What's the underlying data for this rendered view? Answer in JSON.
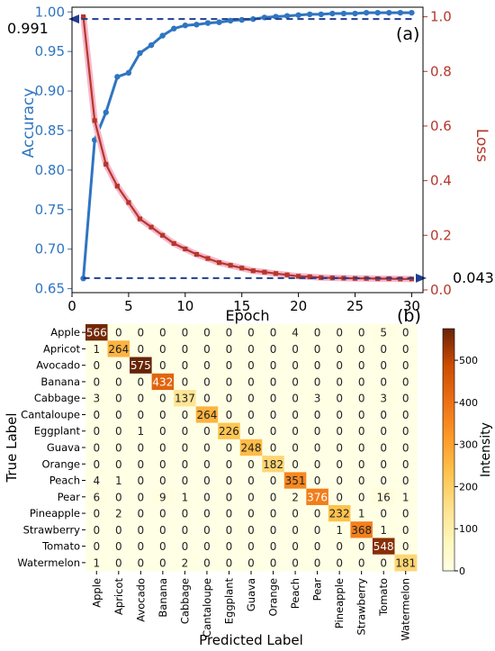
{
  "chart_data": [
    {
      "type": "line",
      "panel_label": "(a)",
      "xlabel": "Epoch",
      "ylabel_left": "Accuracy",
      "ylabel_right": "Loss",
      "xlim": [
        0,
        31
      ],
      "ylim_left": [
        0.645,
        1.006
      ],
      "ylim_right": [
        -0.01,
        1.035
      ],
      "xticks": [
        0,
        5,
        10,
        15,
        20,
        25,
        30
      ],
      "yticks_left": [
        0.65,
        0.7,
        0.75,
        0.8,
        0.85,
        0.9,
        0.95,
        1.0
      ],
      "yticks_right": [
        0.0,
        0.2,
        0.4,
        0.6,
        0.8,
        1.0
      ],
      "x": [
        1,
        2,
        3,
        4,
        5,
        6,
        7,
        8,
        9,
        10,
        11,
        12,
        13,
        14,
        15,
        16,
        17,
        18,
        19,
        20,
        21,
        22,
        23,
        24,
        25,
        26,
        27,
        28,
        29,
        30
      ],
      "series": [
        {
          "axis": "left",
          "color": "#2f75c0",
          "values": [
            0.663,
            0.838,
            0.873,
            0.918,
            0.923,
            0.948,
            0.958,
            0.97,
            0.979,
            0.983,
            0.984,
            0.986,
            0.987,
            0.989,
            0.99,
            0.991,
            0.993,
            0.994,
            0.995,
            0.996,
            0.997,
            0.997,
            0.998,
            0.998,
            0.998,
            0.999,
            0.999,
            0.999,
            0.999,
            0.999
          ]
        },
        {
          "axis": "right",
          "color": "#b5372b",
          "values": [
            1.0,
            0.62,
            0.46,
            0.38,
            0.32,
            0.26,
            0.23,
            0.2,
            0.17,
            0.15,
            0.13,
            0.115,
            0.1,
            0.09,
            0.08,
            0.07,
            0.065,
            0.06,
            0.055,
            0.05,
            0.048,
            0.045,
            0.044,
            0.043,
            0.042,
            0.042,
            0.041,
            0.041,
            0.04,
            0.04
          ]
        }
      ],
      "annotations": [
        {
          "text": "0.991",
          "points_to": "accuracy",
          "value": 0.991
        },
        {
          "text": "0.043",
          "points_to": "loss",
          "value": 0.043
        }
      ]
    },
    {
      "type": "heatmap",
      "panel_label": "(b)",
      "xlabel": "Predicted Label",
      "ylabel": "True Label",
      "colorbar_label": "Intensity",
      "colorbar_ticks": [
        0,
        100,
        200,
        300,
        400,
        500
      ],
      "vmax": 575,
      "categories": [
        "Apple",
        "Apricot",
        "Avocado",
        "Banana",
        "Cabbage",
        "Cantaloupe",
        "Eggplant",
        "Guava",
        "Orange",
        "Peach",
        "Pear",
        "Pineapple",
        "Strawberry",
        "Tomato",
        "Watermelon"
      ],
      "matrix": [
        [
          566,
          0,
          0,
          0,
          0,
          0,
          0,
          0,
          0,
          4,
          0,
          0,
          0,
          5,
          0
        ],
        [
          1,
          264,
          0,
          0,
          0,
          0,
          0,
          0,
          0,
          0,
          0,
          0,
          0,
          0,
          0
        ],
        [
          0,
          0,
          575,
          0,
          0,
          0,
          0,
          0,
          0,
          0,
          0,
          0,
          0,
          0,
          0
        ],
        [
          0,
          0,
          0,
          432,
          0,
          0,
          0,
          0,
          0,
          0,
          0,
          0,
          0,
          0,
          0
        ],
        [
          3,
          0,
          0,
          0,
          137,
          0,
          0,
          0,
          0,
          0,
          3,
          0,
          0,
          3,
          0
        ],
        [
          0,
          0,
          0,
          0,
          0,
          264,
          0,
          0,
          0,
          0,
          0,
          0,
          0,
          0,
          0
        ],
        [
          0,
          0,
          1,
          0,
          0,
          0,
          226,
          0,
          0,
          0,
          0,
          0,
          0,
          0,
          0
        ],
        [
          0,
          0,
          0,
          0,
          0,
          0,
          0,
          248,
          0,
          0,
          0,
          0,
          0,
          0,
          0
        ],
        [
          0,
          0,
          0,
          0,
          0,
          0,
          0,
          0,
          182,
          0,
          0,
          0,
          0,
          0,
          0
        ],
        [
          4,
          1,
          0,
          0,
          0,
          0,
          0,
          0,
          0,
          351,
          0,
          0,
          0,
          0,
          0
        ],
        [
          6,
          0,
          0,
          9,
          1,
          0,
          0,
          0,
          0,
          2,
          376,
          0,
          0,
          16,
          1
        ],
        [
          0,
          2,
          0,
          0,
          0,
          0,
          0,
          0,
          0,
          0,
          0,
          232,
          1,
          0,
          0
        ],
        [
          0,
          0,
          0,
          0,
          0,
          0,
          0,
          0,
          0,
          0,
          0,
          1,
          368,
          1,
          0
        ],
        [
          0,
          0,
          0,
          0,
          0,
          0,
          0,
          0,
          0,
          0,
          0,
          0,
          0,
          548,
          0
        ],
        [
          1,
          0,
          0,
          0,
          2,
          0,
          0,
          0,
          0,
          0,
          0,
          0,
          0,
          0,
          181
        ]
      ]
    }
  ]
}
